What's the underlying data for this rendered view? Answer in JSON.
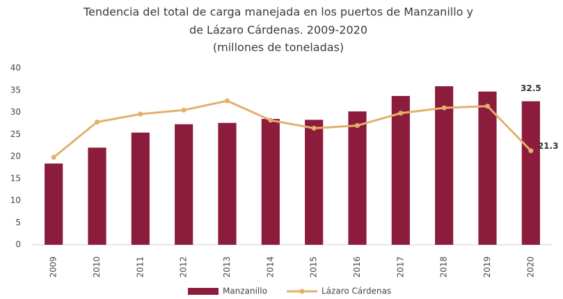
{
  "chart_data": {
    "type": "bar-line",
    "title": [
      "Tendencia del total de carga manejada en los puertos de Manzanillo y",
      "de Lázaro Cárdenas. 2009-2020",
      "(millones de toneladas)"
    ],
    "categories": [
      "2009",
      "2010",
      "2011",
      "2012",
      "2013",
      "2014",
      "2015",
      "2016",
      "2017",
      "2018",
      "2019",
      "2020"
    ],
    "series": [
      {
        "name": "Manzanillo",
        "type": "bar",
        "color": "#8c1c3c",
        "values": [
          18.4,
          22.0,
          25.4,
          27.3,
          27.6,
          28.5,
          28.3,
          30.2,
          33.7,
          35.9,
          34.7,
          32.5
        ]
      },
      {
        "name": "Lázaro Cárdenas",
        "type": "line",
        "color": "#e2b06c",
        "values": [
          19.8,
          27.8,
          29.6,
          30.5,
          32.6,
          28.2,
          26.4,
          27.0,
          29.8,
          31.0,
          31.4,
          21.3
        ]
      }
    ],
    "ylim": [
      0,
      40
    ],
    "yticks": [
      0,
      5,
      10,
      15,
      20,
      25,
      30,
      35,
      40
    ],
    "grid": false,
    "legend": "bottom"
  }
}
